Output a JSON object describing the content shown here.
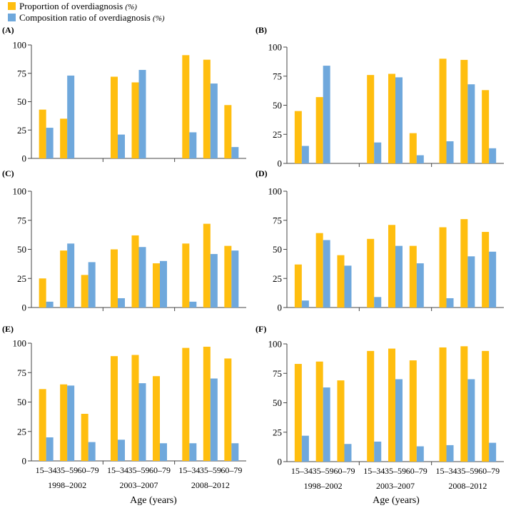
{
  "legend": {
    "items": [
      {
        "label": "Proportion of overdiagnosis",
        "unit": "(%)",
        "color": "#FFBE0F"
      },
      {
        "label": "Composition ratio of overdiagnosis",
        "unit": "(%)",
        "color": "#6FA8DC"
      }
    ]
  },
  "x_axis_title": "Age (years)",
  "chart_data": [
    {
      "type": "bar",
      "panel_label": "(A)",
      "groups": [
        "1998–2002",
        "2003–2007",
        "2008–2012"
      ],
      "categories": [
        "15–34",
        "35–59",
        "60–79"
      ],
      "show_tick_labels": false,
      "yticks": [
        0,
        25,
        50,
        75,
        100
      ],
      "ylim": [
        0,
        100
      ],
      "series": [
        {
          "name": "Proportion of overdiagnosis (%)",
          "values": [
            [
              43,
              35,
              null
            ],
            [
              72,
              67,
              null
            ],
            [
              91,
              87,
              47
            ]
          ]
        },
        {
          "name": "Composition ratio of overdiagnosis (%)",
          "values": [
            [
              27,
              73,
              null
            ],
            [
              21,
              78,
              null
            ],
            [
              23,
              66,
              10
            ]
          ]
        }
      ]
    },
    {
      "type": "bar",
      "panel_label": "(B)",
      "groups": [
        "1998–2002",
        "2003–2007",
        "2008–2012"
      ],
      "categories": [
        "15–34",
        "35–59",
        "60–79"
      ],
      "show_tick_labels": false,
      "yticks": [
        0,
        25,
        50,
        75,
        100
      ],
      "ylim": [
        0,
        100
      ],
      "series": [
        {
          "name": "Proportion of overdiagnosis (%)",
          "values": [
            [
              45,
              57,
              null
            ],
            [
              76,
              77,
              26
            ],
            [
              90,
              89,
              63
            ]
          ]
        },
        {
          "name": "Composition ratio of overdiagnosis (%)",
          "values": [
            [
              15,
              84,
              null
            ],
            [
              18,
              74,
              7
            ],
            [
              19,
              68,
              13
            ]
          ]
        }
      ]
    },
    {
      "type": "bar",
      "panel_label": "(C)",
      "groups": [
        "1998–2002",
        "2003–2007",
        "2008–2012"
      ],
      "categories": [
        "15–34",
        "35–59",
        "60–79"
      ],
      "show_tick_labels": false,
      "yticks": [
        0,
        25,
        50,
        75,
        100
      ],
      "ylim": [
        0,
        100
      ],
      "series": [
        {
          "name": "Proportion of overdiagnosis (%)",
          "values": [
            [
              25,
              49,
              28
            ],
            [
              50,
              62,
              38
            ],
            [
              55,
              72,
              53
            ]
          ]
        },
        {
          "name": "Composition ratio of overdiagnosis (%)",
          "values": [
            [
              5,
              55,
              39
            ],
            [
              8,
              52,
              40
            ],
            [
              5,
              46,
              49
            ]
          ]
        }
      ]
    },
    {
      "type": "bar",
      "panel_label": "(D)",
      "groups": [
        "1998–2002",
        "2003–2007",
        "2008–2012"
      ],
      "categories": [
        "15–34",
        "35–59",
        "60–79"
      ],
      "show_tick_labels": false,
      "yticks": [
        0,
        25,
        50,
        75,
        100
      ],
      "ylim": [
        0,
        100
      ],
      "series": [
        {
          "name": "Proportion of overdiagnosis (%)",
          "values": [
            [
              37,
              64,
              45
            ],
            [
              59,
              71,
              53
            ],
            [
              69,
              76,
              65
            ]
          ]
        },
        {
          "name": "Composition ratio of overdiagnosis (%)",
          "values": [
            [
              6,
              58,
              36
            ],
            [
              9,
              53,
              38
            ],
            [
              8,
              44,
              48
            ]
          ]
        }
      ]
    },
    {
      "type": "bar",
      "panel_label": "(E)",
      "groups": [
        "1998–2002",
        "2003–2007",
        "2008–2012"
      ],
      "categories": [
        "15–34",
        "35–59",
        "60–79"
      ],
      "show_tick_labels": true,
      "yticks": [
        0,
        25,
        50,
        75,
        100
      ],
      "ylim": [
        0,
        100
      ],
      "series": [
        {
          "name": "Proportion of overdiagnosis (%)",
          "values": [
            [
              61,
              65,
              40
            ],
            [
              89,
              90,
              72
            ],
            [
              96,
              97,
              87
            ]
          ]
        },
        {
          "name": "Composition ratio of overdiagnosis (%)",
          "values": [
            [
              20,
              64,
              16
            ],
            [
              18,
              66,
              15
            ],
            [
              15,
              70,
              15
            ]
          ]
        }
      ]
    },
    {
      "type": "bar",
      "panel_label": "(F)",
      "groups": [
        "1998–2002",
        "2003–2007",
        "2008–2012"
      ],
      "categories": [
        "15–34",
        "35–59",
        "60–79"
      ],
      "show_tick_labels": true,
      "yticks": [
        0,
        25,
        50,
        75,
        100
      ],
      "ylim": [
        0,
        100
      ],
      "series": [
        {
          "name": "Proportion of overdiagnosis (%)",
          "values": [
            [
              83,
              85,
              69
            ],
            [
              94,
              96,
              86
            ],
            [
              97,
              98,
              94
            ]
          ]
        },
        {
          "name": "Composition ratio of overdiagnosis (%)",
          "values": [
            [
              22,
              63,
              15
            ],
            [
              17,
              70,
              13
            ],
            [
              14,
              70,
              16
            ]
          ]
        }
      ]
    }
  ]
}
